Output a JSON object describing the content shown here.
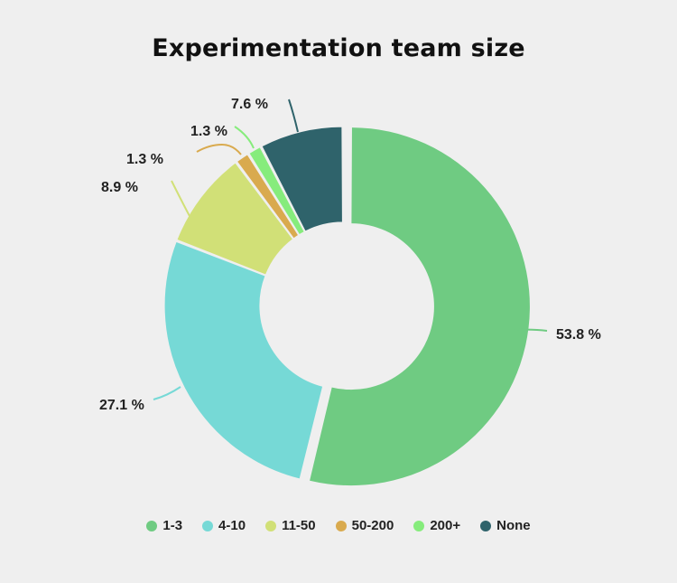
{
  "title": "Experimentation team size",
  "chart_data": {
    "type": "pie",
    "subtype": "donut",
    "title": "Experimentation team size",
    "categories": [
      "1-3",
      "4-10",
      "11-50",
      "50-200",
      "200+",
      "None"
    ],
    "values": [
      53.8,
      27.1,
      8.9,
      1.3,
      1.3,
      7.6
    ],
    "labels": [
      "53.8 %",
      "27.1 %",
      "8.9 %",
      "1.3 %",
      "1.3 %",
      "7.6 %"
    ],
    "colors": [
      "#6fcb82",
      "#76d9d6",
      "#d1e077",
      "#d9aa4e",
      "#86ec7c",
      "#2f636b"
    ],
    "unit": "%",
    "legend_position": "bottom",
    "exploded": [
      "1-3"
    ]
  },
  "legend": [
    {
      "label": "1-3",
      "color": "#6fcb82"
    },
    {
      "label": "4-10",
      "color": "#76d9d6"
    },
    {
      "label": "11-50",
      "color": "#d1e077"
    },
    {
      "label": "50-200",
      "color": "#d9aa4e"
    },
    {
      "label": "200+",
      "color": "#86ec7c"
    },
    {
      "label": "None",
      "color": "#2f636b"
    }
  ]
}
